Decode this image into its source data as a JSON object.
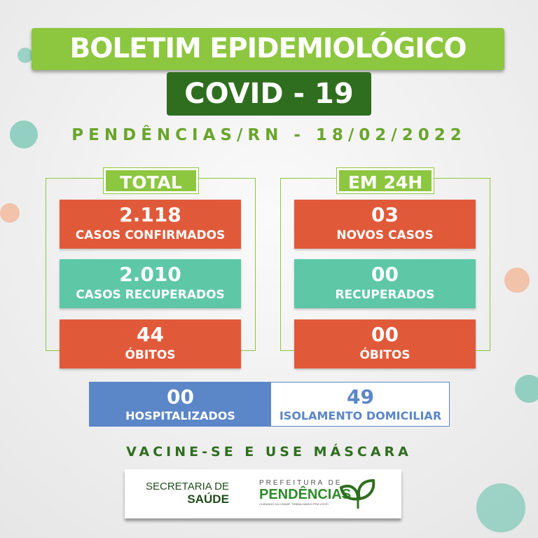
{
  "header": {
    "title": "BOLETIM EPIDEMIOLÓGICO",
    "subtitle": "COVID - 19",
    "location_date": "PENDÊNCIAS/RN - 18/02/2022"
  },
  "total": {
    "label": "TOTAL",
    "items": [
      {
        "value": "2.118",
        "label": "CASOS CONFIRMADOS",
        "color": "#e05a3a"
      },
      {
        "value": "2.010",
        "label": "CASOS RECUPERADOS",
        "color": "#5ec7a6"
      },
      {
        "value": "44",
        "label": "ÓBITOS",
        "color": "#e05a3a"
      }
    ]
  },
  "last24h": {
    "label": "EM 24H",
    "items": [
      {
        "value": "03",
        "label": "NOVOS CASOS",
        "color": "#e05a3a"
      },
      {
        "value": "00",
        "label": "RECUPERADOS",
        "color": "#5ec7a6"
      },
      {
        "value": "00",
        "label": "ÓBITOS",
        "color": "#e05a3a"
      }
    ]
  },
  "bottom": {
    "hospitalized": {
      "value": "00",
      "label": "HOSPITALIZADOS"
    },
    "home_isolation": {
      "value": "49",
      "label": "ISOLAMENTO DOMICILIAR"
    }
  },
  "slogan": "VACINE-SE E USE MÁSCARA",
  "footer": {
    "secretaria_line1": "SECRETARIA DE",
    "secretaria_line2": "SAÚDE",
    "prefeitura_top": "PREFEITURA DE",
    "prefeitura_name": "PENDÊNCIAS",
    "prefeitura_tagline": "CUIDANDO DA CIDADE, TRABALHANDO PRA VOCÊ!"
  }
}
